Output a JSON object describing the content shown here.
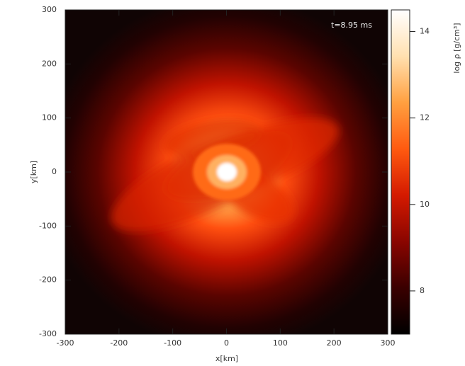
{
  "chart_data": {
    "type": "density-map",
    "xlabel": "x[km]",
    "ylabel": "y[km]",
    "annotation": "t=8.95 ms",
    "xlim": [
      -300,
      300
    ],
    "xticks": [
      -300,
      -200,
      -100,
      0,
      100,
      200,
      300
    ],
    "ylim": [
      -300,
      300
    ],
    "yticks": [
      -300,
      -200,
      -100,
      0,
      100,
      200,
      300
    ],
    "colorbar": {
      "label": "log ρ [g/cm³]",
      "lim": [
        7,
        14.5
      ],
      "ticks": [
        8,
        10,
        12,
        14
      ],
      "colormap": [
        "#000000",
        "#3a0000",
        "#8a0500",
        "#d41a00",
        "#ff5a10",
        "#ffa040",
        "#ffe0b0",
        "#ffffff"
      ]
    }
  }
}
